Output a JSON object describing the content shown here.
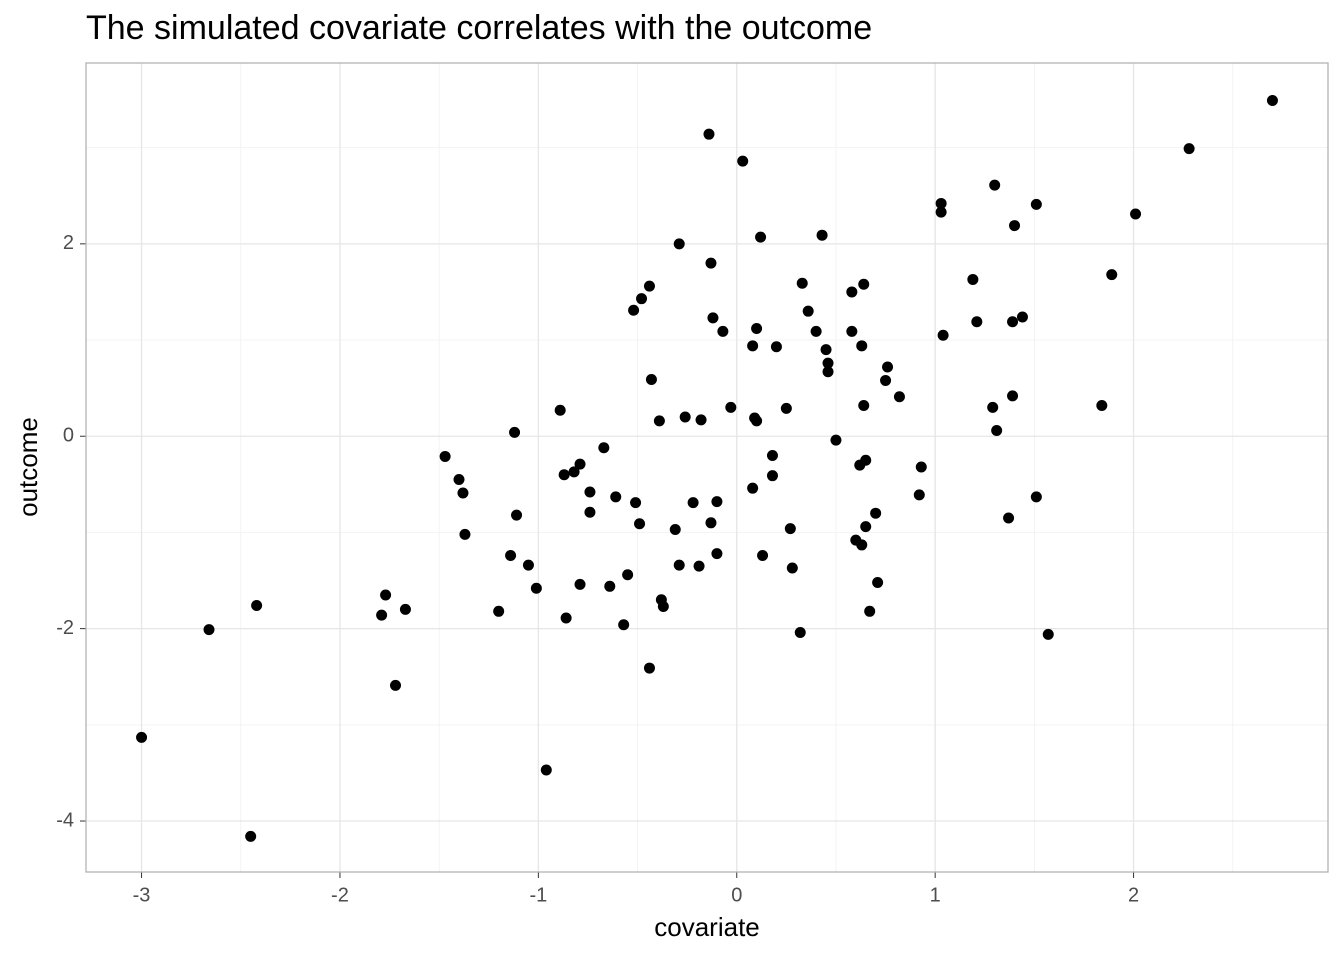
{
  "chart_data": {
    "type": "scatter",
    "title": "The simulated covariate correlates with the outcome",
    "x_label": "covariate",
    "y_label": "outcome",
    "color": "#000000",
    "grid": true,
    "xlim": [
      -3.28,
      2.98
    ],
    "ylim": [
      -4.53,
      3.88
    ],
    "xticks": [
      -3,
      -2,
      -1,
      0,
      1,
      2
    ],
    "yticks": [
      -4,
      -2,
      0,
      2
    ],
    "x_minor_grid": [
      -2.5,
      -1.5,
      -0.5,
      0.5,
      1.5,
      2.5
    ],
    "y_minor_grid": [
      -3,
      -1,
      1,
      3
    ],
    "x": [
      -3.0,
      -2.45,
      -2.66,
      -2.42,
      -1.77,
      -1.79,
      -1.67,
      -1.72,
      -1.47,
      -1.4,
      -1.38,
      -1.37,
      -1.2,
      -1.14,
      -1.12,
      -1.11,
      -1.05,
      -1.01,
      -0.96,
      -0.89,
      -0.87,
      -0.86,
      -0.82,
      -0.79,
      -0.79,
      -0.74,
      -0.74,
      -0.67,
      -0.64,
      -0.61,
      -0.57,
      -0.55,
      -0.52,
      -0.51,
      -0.49,
      -0.48,
      -0.44,
      -0.44,
      -0.43,
      -0.39,
      -0.38,
      -0.37,
      -0.31,
      -0.29,
      -0.29,
      -0.26,
      -0.22,
      -0.19,
      -0.18,
      -0.14,
      -0.13,
      -0.13,
      -0.12,
      -0.1,
      -0.1,
      -0.07,
      -0.03,
      0.03,
      0.08,
      0.08,
      0.09,
      0.1,
      0.1,
      0.12,
      0.13,
      0.18,
      0.18,
      0.2,
      0.25,
      0.27,
      0.28,
      0.32,
      0.33,
      0.36,
      0.4,
      0.43,
      0.45,
      0.46,
      0.46,
      0.5,
      0.58,
      0.58,
      0.6,
      0.62,
      0.63,
      0.63,
      0.64,
      0.64,
      0.65,
      0.65,
      0.67,
      0.7,
      0.71,
      0.75,
      0.76,
      0.82,
      0.92,
      0.93,
      1.03,
      1.03,
      1.04,
      1.19,
      1.21,
      1.29,
      1.3,
      1.31,
      1.37,
      1.39,
      1.39,
      1.4,
      1.44,
      1.51,
      1.51,
      1.57,
      1.84,
      1.89,
      2.01,
      2.28,
      2.7
    ],
    "values": [
      -3.13,
      -4.16,
      -2.01,
      -1.76,
      -1.65,
      -1.86,
      -1.8,
      -2.59,
      -0.21,
      -0.45,
      -0.59,
      -1.02,
      -1.82,
      -1.24,
      0.04,
      -0.82,
      -1.34,
      -1.58,
      -3.47,
      0.27,
      -0.4,
      -1.89,
      -0.37,
      -0.29,
      -1.54,
      -0.58,
      -0.79,
      -0.12,
      -1.56,
      -0.63,
      -1.96,
      -1.44,
      1.31,
      -0.69,
      -0.91,
      1.43,
      1.56,
      -2.41,
      0.59,
      0.16,
      -1.7,
      -1.77,
      -0.97,
      2.0,
      -1.34,
      0.2,
      -0.69,
      -1.35,
      0.17,
      3.14,
      1.8,
      -0.9,
      1.23,
      -0.68,
      -1.22,
      1.09,
      0.3,
      2.86,
      -0.54,
      0.94,
      0.19,
      0.16,
      1.12,
      2.07,
      -1.24,
      -0.2,
      -0.41,
      0.93,
      0.29,
      -0.96,
      -1.37,
      -2.04,
      1.59,
      1.3,
      1.09,
      2.09,
      0.9,
      0.76,
      0.67,
      -0.04,
      1.09,
      1.5,
      -1.08,
      -0.3,
      -1.13,
      0.94,
      1.58,
      0.32,
      -0.25,
      -0.94,
      -1.82,
      -0.8,
      -1.52,
      0.58,
      0.72,
      0.41,
      -0.61,
      -0.32,
      2.33,
      2.42,
      1.05,
      1.63,
      1.19,
      0.3,
      2.61,
      0.06,
      -0.85,
      0.42,
      1.19,
      2.19,
      1.24,
      2.41,
      -0.63,
      -2.06,
      0.32,
      1.68,
      2.31,
      2.99,
      3.49
    ]
  }
}
